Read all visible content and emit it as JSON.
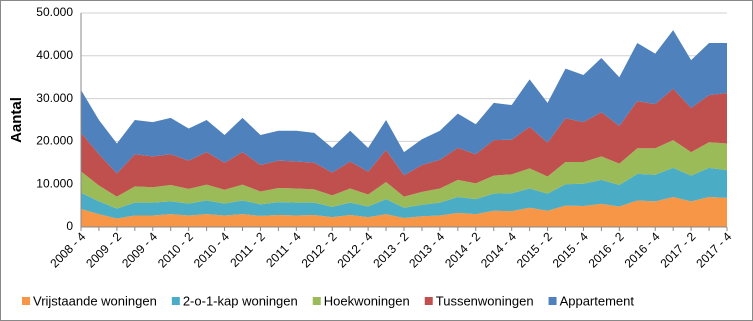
{
  "chart_data": {
    "type": "stacked-area",
    "y_label": "Aantal",
    "categories": [
      "2008 - 4",
      null,
      "2009 - 2",
      null,
      "2009 - 4",
      null,
      "2010 - 2",
      null,
      "2010 - 4",
      null,
      "2011 - 2",
      null,
      "2011 - 4",
      null,
      "2012 - 2",
      null,
      "2012 - 4",
      null,
      "2013 - 2",
      null,
      "2013 - 4",
      null,
      "2014 - 2",
      null,
      "2014 - 4",
      null,
      "2015 - 2",
      null,
      "2015 - 4",
      null,
      "2016 - 2",
      null,
      "2016 - 4",
      null,
      "2017 - 2",
      null,
      "2017 - 4"
    ],
    "series": [
      {
        "name": "Vrijstaande woningen",
        "color": "#f79646",
        "values": [
          4200,
          3000,
          2000,
          2700,
          2700,
          3000,
          2700,
          3000,
          2700,
          3000,
          2600,
          2800,
          2700,
          2800,
          2300,
          2800,
          2300,
          3000,
          2100,
          2500,
          2700,
          3300,
          3000,
          3800,
          3700,
          4500,
          3800,
          5000,
          4900,
          5400,
          4800,
          6200,
          6000,
          7000,
          6000,
          7000,
          6800
        ]
      },
      {
        "name": "2-o-1-kap woningen",
        "color": "#4bacc6",
        "values": [
          3800,
          3000,
          2300,
          3000,
          3000,
          3000,
          2800,
          3200,
          2800,
          3200,
          2700,
          3000,
          3000,
          2900,
          2400,
          2900,
          2500,
          3500,
          2400,
          2700,
          3000,
          3700,
          3500,
          4000,
          4200,
          4500,
          4000,
          5000,
          5200,
          5600,
          5000,
          6200,
          6200,
          6800,
          6000,
          6800,
          6500
        ]
      },
      {
        "name": "Hoekwoningen",
        "color": "#9bbb59",
        "values": [
          5000,
          3700,
          2800,
          3800,
          3600,
          3800,
          3400,
          3700,
          3200,
          3700,
          3000,
          3300,
          3300,
          3100,
          2700,
          3300,
          2800,
          4000,
          2600,
          3000,
          3300,
          4000,
          3700,
          4200,
          4400,
          4700,
          4000,
          5200,
          5100,
          5500,
          5000,
          6000,
          6200,
          6500,
          5500,
          6000,
          6200
        ]
      },
      {
        "name": "Tussenwoningen",
        "color": "#c0504d",
        "values": [
          9000,
          7300,
          5400,
          7500,
          7200,
          7200,
          6600,
          7600,
          6300,
          7600,
          6200,
          6400,
          6300,
          6200,
          5300,
          6300,
          5300,
          7500,
          5000,
          6300,
          6700,
          7500,
          6800,
          8300,
          8100,
          9700,
          7900,
          10200,
          9300,
          10300,
          8800,
          11000,
          10300,
          12000,
          10300,
          11000,
          11800
        ]
      },
      {
        "name": "Appartement",
        "color": "#4f81bd",
        "values": [
          10000,
          8000,
          7000,
          8000,
          8000,
          8500,
          7500,
          7500,
          6500,
          8000,
          7000,
          7000,
          7200,
          7000,
          5800,
          7200,
          5600,
          7000,
          5400,
          6000,
          6800,
          8000,
          7000,
          8700,
          8100,
          11100,
          9300,
          11600,
          11000,
          12700,
          11400,
          13600,
          11800,
          13700,
          11200,
          12200,
          11700
        ]
      }
    ],
    "ylim": [
      0,
      50000
    ],
    "yticks": [
      0,
      {
        "value": 10000,
        "label": "10.000"
      },
      {
        "value": 20000,
        "label": "20.000"
      },
      {
        "value": 30000,
        "label": "30.000"
      },
      {
        "value": 40000,
        "label": "40.000"
      },
      {
        "value": 50000,
        "label": "50.000"
      }
    ],
    "grid": true
  }
}
